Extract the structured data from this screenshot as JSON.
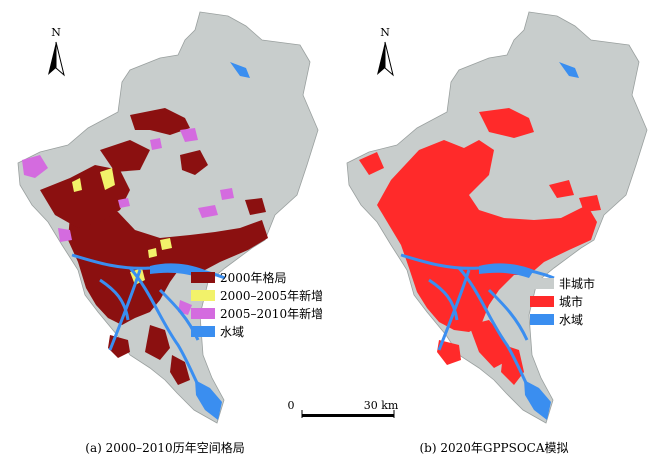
{
  "panels": [
    {
      "caption": "(a) 2000–2010历年空间格局",
      "north": "N",
      "legend": [
        {
          "label": "2000年格局",
          "color": "#8b1010"
        },
        {
          "label": "2000–2005年新增",
          "color": "#f2f26a"
        },
        {
          "label": "2005–2010年新增",
          "color": "#d46bdf"
        },
        {
          "label": "水域",
          "color": "#3a8ef0"
        }
      ]
    },
    {
      "caption": "(b) 2020年GPPSOCA模拟",
      "north": "N",
      "legend": [
        {
          "label": "非城市",
          "color": "#c8cdcc"
        },
        {
          "label": "城市",
          "color": "#ff2a2a"
        },
        {
          "label": "水域",
          "color": "#3a8ef0"
        }
      ]
    }
  ],
  "scalebar": {
    "start": "0",
    "end": "30 km"
  },
  "colors": {
    "land": "#c8cdcc",
    "water": "#3a8ef0",
    "urban2000": "#8b1010",
    "new0005": "#f2f26a",
    "new0510": "#d46bdf",
    "city2020": "#ff2a2a"
  }
}
